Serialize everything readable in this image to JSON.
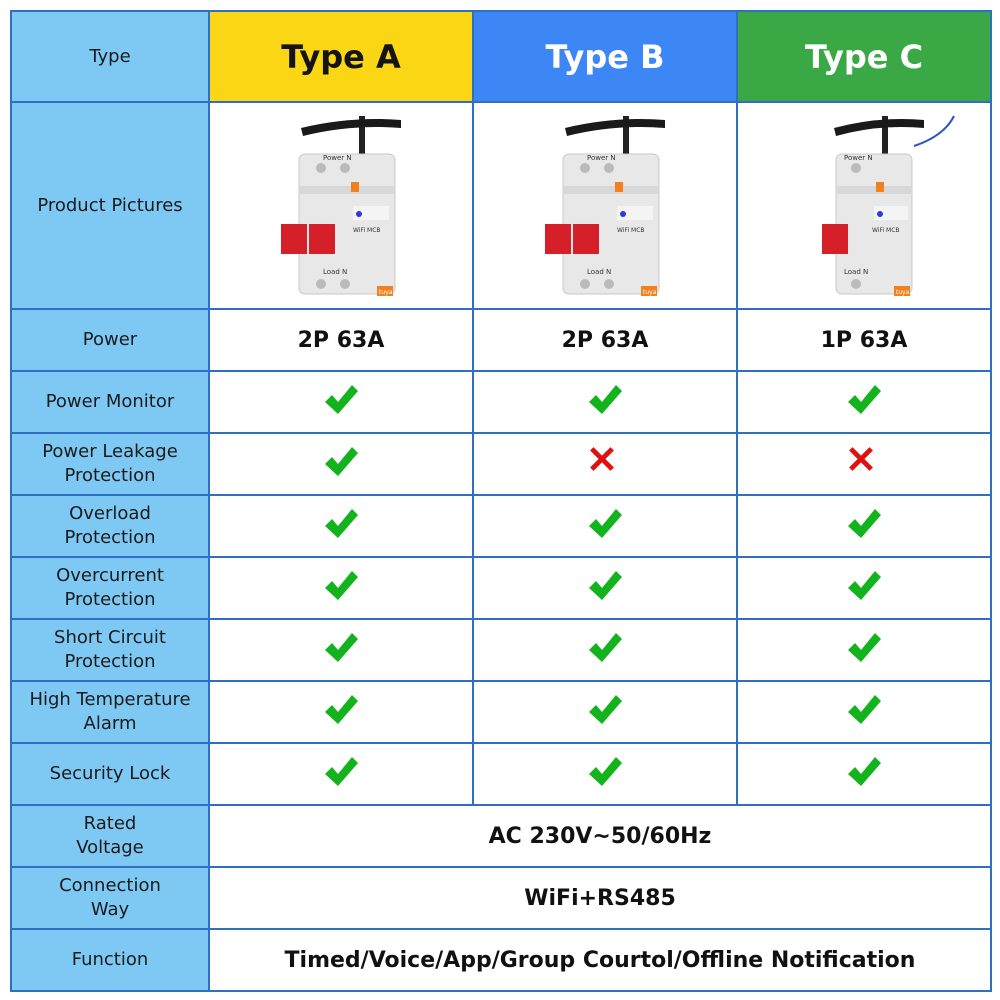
{
  "header": {
    "type_label": "Type",
    "type_a": "Type A",
    "type_b": "Type B",
    "type_c": "Type C"
  },
  "rows": {
    "product_pictures": "Product Pictures",
    "power": "Power",
    "power_monitor": "Power Monitor",
    "power_leakage_1": "Power Leakage",
    "power_leakage_2": "Protection",
    "overload_1": "Overload",
    "overload_2": "Protection",
    "overcurrent_1": "Overcurrent",
    "overcurrent_2": "Protection",
    "short_circuit_1": "Short Circuit",
    "short_circuit_2": "Protection",
    "high_temp_1": "High Temperature",
    "high_temp_2": "Alarm",
    "security_lock": "Security Lock",
    "rated_voltage_1": "Rated",
    "rated_voltage_2": "Voltage",
    "connection_1": "Connection",
    "connection_2": "Way",
    "function": "Function"
  },
  "power_values": {
    "a": "2P 63A",
    "b": "2P 63A",
    "c": "1P 63A"
  },
  "device_labels": {
    "top": "Power  N",
    "wifi": "WiFi  MCB",
    "bottom": "Load  N",
    "brand": "tuya"
  },
  "features": {
    "power_monitor": {
      "a": true,
      "b": true,
      "c": true
    },
    "power_leakage": {
      "a": true,
      "b": false,
      "c": false
    },
    "overload": {
      "a": true,
      "b": true,
      "c": true
    },
    "overcurrent": {
      "a": true,
      "b": true,
      "c": true
    },
    "short_circuit": {
      "a": true,
      "b": true,
      "c": true
    },
    "high_temp": {
      "a": true,
      "b": true,
      "c": true
    },
    "security_lock": {
      "a": true,
      "b": true,
      "c": true
    }
  },
  "shared": {
    "rated_voltage": "AC 230V~50/60Hz",
    "connection_way": "WiFi+RS485",
    "function": "Timed/Voice/App/Group Courtol/Offline Notification"
  },
  "colors": {
    "label_bg": "#7ec8f4",
    "border": "#2f6fc4",
    "type_a": "#fad614",
    "type_b": "#3d86f5",
    "type_c": "#3aa845",
    "check": "#12b31c",
    "cross": "#e01010"
  },
  "icons": {
    "check": "check-icon",
    "cross": "cross-icon"
  }
}
